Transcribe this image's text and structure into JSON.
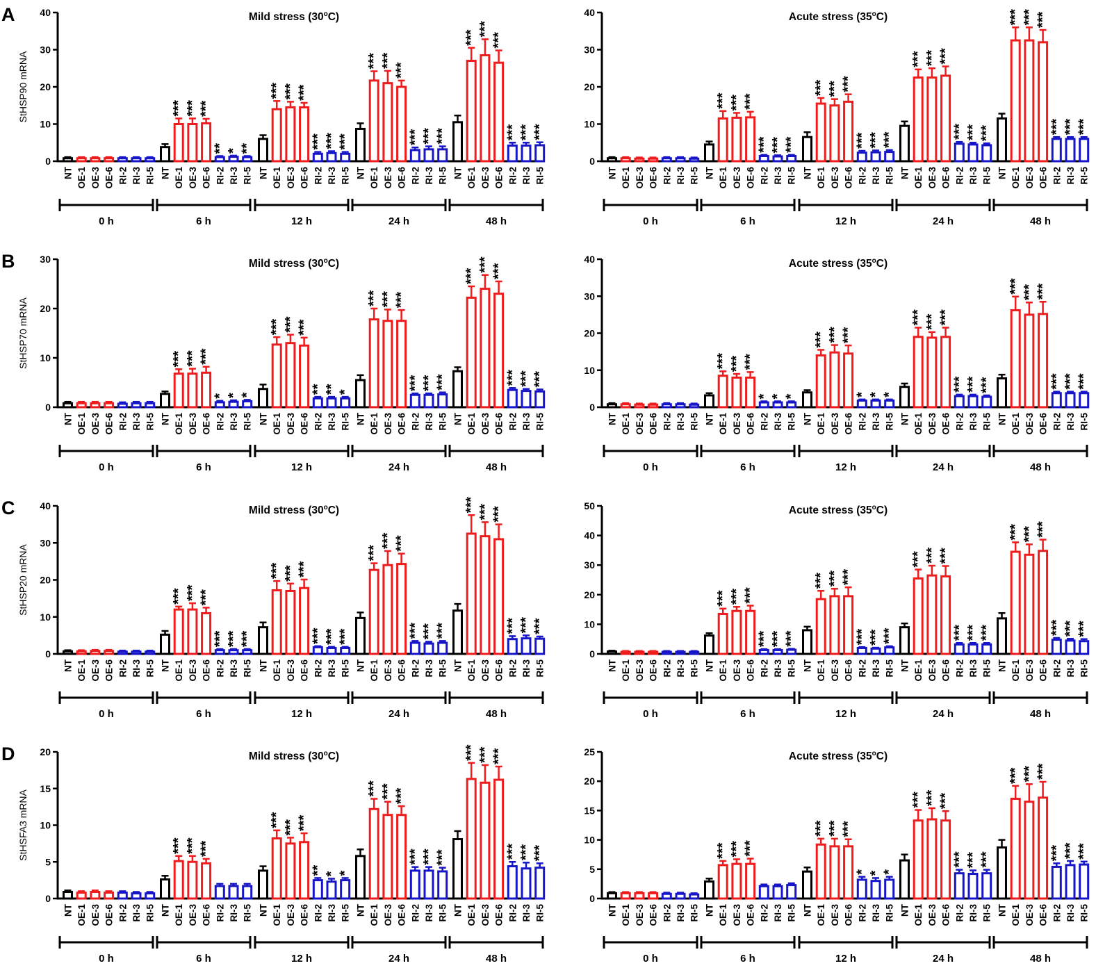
{
  "figure": {
    "groups": [
      "NT",
      "OE-1",
      "OE-3",
      "OE-6",
      "RI-2",
      "RI-3",
      "RI-5"
    ],
    "timepoints": [
      "0 h",
      "6 h",
      "12 h",
      "24 h",
      "48 h"
    ],
    "group_colors": {
      "NT": "#000000",
      "OE": "#ee1c1c",
      "RI": "#1616c8"
    }
  },
  "chart_data": [
    {
      "type": "bar",
      "panel": "A",
      "title": "Mild stress (30",
      "title_sup": "o",
      "title_end": "C)",
      "ylabel": "StHSP90 mRNA",
      "ylim": [
        0,
        40
      ],
      "yticks": [
        "0",
        "10",
        "20",
        "30",
        "40"
      ],
      "values": [
        [
          0.8,
          0.8,
          0.8,
          0.8,
          0.8,
          0.8,
          0.8
        ],
        [
          3.8,
          10,
          10,
          10.2,
          1.1,
          1.2,
          1.1
        ],
        [
          6,
          14,
          14.5,
          14.5,
          2,
          2.2,
          2
        ],
        [
          8.7,
          21.7,
          21,
          20,
          3,
          3.2,
          3.2
        ],
        [
          10.5,
          27,
          28.5,
          26.5,
          4.2,
          4.2,
          4.3
        ]
      ],
      "errors": [
        [
          0.3,
          0.3,
          0.3,
          0.3,
          0.3,
          0.3,
          0.3
        ],
        [
          0.8,
          1.5,
          1.5,
          1.2,
          0.3,
          0.3,
          0.3
        ],
        [
          1,
          2.2,
          1.5,
          1.2,
          0.5,
          0.5,
          0.5
        ],
        [
          1.5,
          2.5,
          3.3,
          1.7,
          0.7,
          0.8,
          0.8
        ],
        [
          1.8,
          3.5,
          4.3,
          3.3,
          0.8,
          0.8,
          0.8
        ]
      ],
      "stars": [
        [
          "",
          "",
          "",
          "",
          "",
          "",
          ""
        ],
        [
          "",
          "***",
          "***",
          "***",
          "**",
          "*",
          "**"
        ],
        [
          "",
          "***",
          "***",
          "***",
          "***",
          "***",
          "***"
        ],
        [
          "",
          "***",
          "***",
          "***",
          "***",
          "***",
          "***"
        ],
        [
          "",
          "***",
          "***",
          "***",
          "***",
          "***",
          "***"
        ]
      ]
    },
    {
      "type": "bar",
      "panel": "",
      "title": "Acute stress (35",
      "title_sup": "o",
      "title_end": "C)",
      "ylabel": "",
      "ylim": [
        0,
        40
      ],
      "yticks": [
        "0",
        "10",
        "20",
        "30",
        "40"
      ],
      "values": [
        [
          0.8,
          0.8,
          0.7,
          0.7,
          0.8,
          0.8,
          0.7
        ],
        [
          4.5,
          11.5,
          11.7,
          11.8,
          1.4,
          1.3,
          1.4
        ],
        [
          6.5,
          15.5,
          15,
          16,
          2.3,
          2.4,
          2.5
        ],
        [
          9.5,
          22.5,
          22.5,
          23,
          4.7,
          4.5,
          4.3
        ],
        [
          11.5,
          32.5,
          32.5,
          32,
          6,
          6,
          6
        ]
      ],
      "errors": [
        [
          0.3,
          0.3,
          0.3,
          0.3,
          0.3,
          0.3,
          0.3
        ],
        [
          0.8,
          2,
          1.3,
          1.5,
          0.3,
          0.3,
          0.3
        ],
        [
          1.3,
          1.5,
          1.7,
          2,
          0.5,
          0.5,
          0.5
        ],
        [
          1.2,
          2.2,
          2.5,
          2.5,
          0.5,
          0.5,
          0.5
        ],
        [
          1.3,
          3.5,
          3.5,
          3.3,
          0.5,
          0.5,
          0.5
        ]
      ],
      "stars": [
        [
          "",
          "",
          "",
          "",
          "",
          "",
          ""
        ],
        [
          "",
          "***",
          "***",
          "***",
          "***",
          "***",
          "***"
        ],
        [
          "",
          "***",
          "***",
          "***",
          "***",
          "***",
          "***"
        ],
        [
          "",
          "***",
          "***",
          "***",
          "***",
          "***",
          "***"
        ],
        [
          "",
          "***",
          "***",
          "***",
          "***",
          "***",
          "***"
        ]
      ]
    },
    {
      "type": "bar",
      "panel": "B",
      "title": "Mild stress (30",
      "title_sup": "o",
      "title_end": "C)",
      "ylabel": "StHSP70 mRNA",
      "ylim": [
        0,
        30
      ],
      "yticks": [
        "0",
        "10",
        "20",
        "30"
      ],
      "values": [
        [
          0.8,
          0.8,
          0.8,
          0.8,
          0.7,
          0.8,
          0.8
        ],
        [
          2.7,
          6.8,
          6.8,
          7,
          1,
          1.1,
          1.2
        ],
        [
          3.7,
          12.7,
          13,
          12.5,
          1.8,
          1.8,
          1.8
        ],
        [
          5.5,
          17.8,
          17.5,
          17.5,
          2.5,
          2.5,
          2.6
        ],
        [
          7.3,
          22.2,
          24,
          23,
          3.5,
          3.3,
          3.2
        ]
      ],
      "errors": [
        [
          0.3,
          0.3,
          0.3,
          0.3,
          0.3,
          0.3,
          0.3
        ],
        [
          0.5,
          0.9,
          1,
          1.2,
          0.3,
          0.3,
          0.3
        ],
        [
          0.9,
          1.5,
          1.7,
          1.6,
          0.3,
          0.3,
          0.3
        ],
        [
          1,
          2.2,
          2.3,
          2.2,
          0.3,
          0.3,
          0.4
        ],
        [
          0.8,
          2.3,
          2.8,
          2.5,
          0.4,
          0.4,
          0.4
        ]
      ],
      "stars": [
        [
          "",
          "",
          "",
          "",
          "",
          "",
          ""
        ],
        [
          "",
          "***",
          "***",
          "***",
          "*",
          "*",
          "*"
        ],
        [
          "",
          "***",
          "***",
          "***",
          "**",
          "**",
          "*"
        ],
        [
          "",
          "***",
          "***",
          "***",
          "***",
          "***",
          "***"
        ],
        [
          "",
          "***",
          "***",
          "***",
          "***",
          "***",
          "***"
        ]
      ]
    },
    {
      "type": "bar",
      "panel": "",
      "title": "Acute stress (35",
      "title_sup": "o",
      "title_end": "C)",
      "ylabel": "",
      "ylim": [
        0,
        40
      ],
      "yticks": [
        "0",
        "10",
        "20",
        "30",
        "40"
      ],
      "values": [
        [
          0.8,
          0.8,
          0.7,
          0.7,
          0.8,
          0.8,
          0.7
        ],
        [
          3.2,
          8.5,
          8,
          8,
          1.3,
          1.3,
          1.3
        ],
        [
          4,
          14,
          14.8,
          14.5,
          1.8,
          1.8,
          1.8
        ],
        [
          5.5,
          19,
          18.8,
          19,
          3,
          3,
          2.8
        ],
        [
          7.8,
          26.2,
          25,
          25.2,
          3.8,
          3.8,
          3.8
        ]
      ],
      "errors": [
        [
          0.3,
          0.3,
          0.3,
          0.3,
          0.3,
          0.3,
          0.3
        ],
        [
          0.6,
          1.2,
          1,
          1.5,
          0.3,
          0.3,
          0.3
        ],
        [
          0.6,
          1.5,
          2,
          2.2,
          0.3,
          0.3,
          0.3
        ],
        [
          0.9,
          2.5,
          1.5,
          2.5,
          0.4,
          0.4,
          0.4
        ],
        [
          1,
          3.7,
          3.3,
          3.3,
          0.4,
          0.4,
          0.4
        ]
      ],
      "stars": [
        [
          "",
          "",
          "",
          "",
          "",
          "",
          ""
        ],
        [
          "",
          "***",
          "***",
          "***",
          "*",
          "*",
          "*"
        ],
        [
          "",
          "***",
          "***",
          "***",
          "*",
          "*",
          "*"
        ],
        [
          "",
          "***",
          "***",
          "***",
          "***",
          "***",
          "***"
        ],
        [
          "",
          "***",
          "***",
          "***",
          "***",
          "***",
          "***"
        ]
      ]
    },
    {
      "type": "bar",
      "panel": "C",
      "title": "Mild stress (30",
      "title_sup": "o",
      "title_end": "C)",
      "ylabel": "StHSP20 mRNA",
      "ylim": [
        0,
        40
      ],
      "yticks": [
        "0",
        "10",
        "20",
        "30",
        "40"
      ],
      "values": [
        [
          0.7,
          0.7,
          0.8,
          0.8,
          0.6,
          0.6,
          0.6
        ],
        [
          5.2,
          12,
          12,
          11,
          1,
          1,
          1
        ],
        [
          7.2,
          17.2,
          17,
          17.8,
          1.8,
          1.6,
          1.6
        ],
        [
          9.7,
          22.7,
          24,
          24.3,
          3,
          2.8,
          3
        ],
        [
          11.7,
          32.5,
          31.8,
          31,
          4,
          4.2,
          4.1
        ]
      ],
      "errors": [
        [
          0.3,
          0.3,
          0.3,
          0.3,
          0.3,
          0.3,
          0.3
        ],
        [
          1,
          0.8,
          1.7,
          1.5,
          0.3,
          0.3,
          0.3
        ],
        [
          1.3,
          2.5,
          2,
          2.3,
          0.3,
          0.3,
          0.3
        ],
        [
          1.5,
          1.8,
          3.8,
          2.8,
          0.5,
          0.5,
          0.5
        ],
        [
          1.8,
          5,
          3.8,
          4,
          0.8,
          0.8,
          0.6
        ]
      ],
      "stars": [
        [
          "",
          "",
          "",
          "",
          "",
          "",
          ""
        ],
        [
          "",
          "***",
          "***",
          "***",
          "***",
          "***",
          "***"
        ],
        [
          "",
          "***",
          "***",
          "***",
          "***",
          "***",
          "***"
        ],
        [
          "",
          "***",
          "***",
          "***",
          "***",
          "***",
          "***"
        ],
        [
          "",
          "***",
          "***",
          "***",
          "***",
          "***",
          "***"
        ]
      ]
    },
    {
      "type": "bar",
      "panel": "",
      "title": "Acute stress (35",
      "title_sup": "o",
      "title_end": "C)",
      "ylabel": "",
      "ylim": [
        0,
        50
      ],
      "yticks": [
        "0",
        "10",
        "20",
        "30",
        "40",
        "50"
      ],
      "values": [
        [
          0.8,
          0.7,
          0.7,
          0.7,
          0.7,
          0.7,
          0.7
        ],
        [
          6.2,
          13.5,
          14.5,
          14.5,
          1.3,
          1.3,
          1.4
        ],
        [
          8,
          18.5,
          19.5,
          19.5,
          2,
          1.8,
          2.2
        ],
        [
          9,
          25.5,
          26.5,
          26.2,
          3.2,
          3.2,
          3.2
        ],
        [
          12,
          34.5,
          33.5,
          34.8,
          4.8,
          4.5,
          4.3
        ]
      ],
      "errors": [
        [
          0.3,
          0.3,
          0.3,
          0.3,
          0.3,
          0.3,
          0.3
        ],
        [
          0.8,
          1.8,
          1.4,
          1.8,
          0.3,
          0.3,
          0.3
        ],
        [
          1.2,
          2.8,
          2.5,
          3,
          0.3,
          0.3,
          0.4
        ],
        [
          1.3,
          3,
          3.3,
          3.5,
          0.5,
          0.5,
          0.5
        ],
        [
          1.8,
          3.2,
          3.5,
          3.8,
          0.6,
          0.6,
          0.7
        ]
      ],
      "stars": [
        [
          "",
          "",
          "",
          "",
          "",
          "",
          ""
        ],
        [
          "",
          "***",
          "***",
          "***",
          "***",
          "***",
          "***"
        ],
        [
          "",
          "***",
          "***",
          "***",
          "***",
          "***",
          "***"
        ],
        [
          "",
          "***",
          "***",
          "***",
          "***",
          "***",
          "***"
        ],
        [
          "",
          "***",
          "***",
          "***",
          "***",
          "***",
          "***"
        ]
      ]
    },
    {
      "type": "bar",
      "panel": "D",
      "title": "Mild stress (30",
      "title_sup": "o",
      "title_end": "C)",
      "ylabel": "StHSFA3 mRNA",
      "ylim": [
        0,
        20
      ],
      "yticks": [
        "0",
        "5",
        "10",
        "15",
        "20"
      ],
      "values": [
        [
          0.9,
          0.8,
          0.9,
          0.8,
          0.8,
          0.7,
          0.7
        ],
        [
          2.6,
          5.1,
          5,
          4.8,
          1.7,
          1.7,
          1.7
        ],
        [
          3.8,
          8.2,
          7.5,
          7.7,
          2.5,
          2.3,
          2.5
        ],
        [
          5.8,
          12.2,
          11.4,
          11.4,
          3.8,
          3.8,
          3.7
        ],
        [
          8.1,
          16.3,
          15.8,
          16.2,
          4.4,
          4.1,
          4.2
        ]
      ],
      "errors": [
        [
          0.2,
          0.2,
          0.2,
          0.2,
          0.2,
          0.2,
          0.2
        ],
        [
          0.5,
          0.7,
          0.8,
          0.6,
          0.3,
          0.3,
          0.3
        ],
        [
          0.6,
          1.1,
          0.8,
          1.2,
          0.3,
          0.4,
          0.3
        ],
        [
          0.9,
          1.4,
          1.8,
          1.2,
          0.5,
          0.5,
          0.5
        ],
        [
          1.1,
          2.2,
          2.4,
          1.8,
          0.6,
          0.8,
          0.6
        ]
      ],
      "stars": [
        [
          "",
          "",
          "",
          "",
          "",
          "",
          ""
        ],
        [
          "",
          "***",
          "***",
          "***",
          "",
          "",
          ""
        ],
        [
          "",
          "***",
          "***",
          "***",
          "**",
          "*",
          "*"
        ],
        [
          "",
          "***",
          "***",
          "***",
          "***",
          "***",
          "***"
        ],
        [
          "",
          "***",
          "***",
          "***",
          "***",
          "***",
          "***"
        ]
      ]
    },
    {
      "type": "bar",
      "panel": "",
      "title": "Acute stress (35",
      "title_sup": "o",
      "title_end": "C)",
      "ylabel": "",
      "ylim": [
        0,
        25
      ],
      "yticks": [
        "0",
        "5",
        "10",
        "15",
        "20",
        "25"
      ],
      "values": [
        [
          0.9,
          0.9,
          0.9,
          0.9,
          0.8,
          0.8,
          0.7
        ],
        [
          2.9,
          5.7,
          5.9,
          5.9,
          2.1,
          2.1,
          2.3
        ],
        [
          4.6,
          9.2,
          8.9,
          8.9,
          3.2,
          3,
          3.2
        ],
        [
          6.5,
          13.3,
          13.5,
          13.3,
          4.3,
          4.2,
          4.3
        ],
        [
          8.7,
          17,
          16.5,
          17.2,
          5.4,
          5.7,
          5.8
        ]
      ],
      "errors": [
        [
          0.2,
          0.2,
          0.2,
          0.2,
          0.2,
          0.2,
          0.2
        ],
        [
          0.5,
          0.7,
          0.8,
          0.9,
          0.3,
          0.3,
          0.3
        ],
        [
          0.7,
          1,
          1.3,
          1.2,
          0.5,
          0.5,
          0.5
        ],
        [
          1,
          1.8,
          1.9,
          1.6,
          0.6,
          0.6,
          0.6
        ],
        [
          1.3,
          2.2,
          3,
          2.7,
          0.6,
          0.7,
          0.5
        ]
      ],
      "stars": [
        [
          "",
          "",
          "",
          "",
          "",
          "",
          ""
        ],
        [
          "",
          "***",
          "***",
          "***",
          "",
          "",
          ""
        ],
        [
          "",
          "***",
          "***",
          "***",
          "*",
          "*",
          "*"
        ],
        [
          "",
          "***",
          "***",
          "***",
          "***",
          "***",
          "***"
        ],
        [
          "",
          "***",
          "***",
          "***",
          "***",
          "***",
          "***"
        ]
      ]
    }
  ]
}
